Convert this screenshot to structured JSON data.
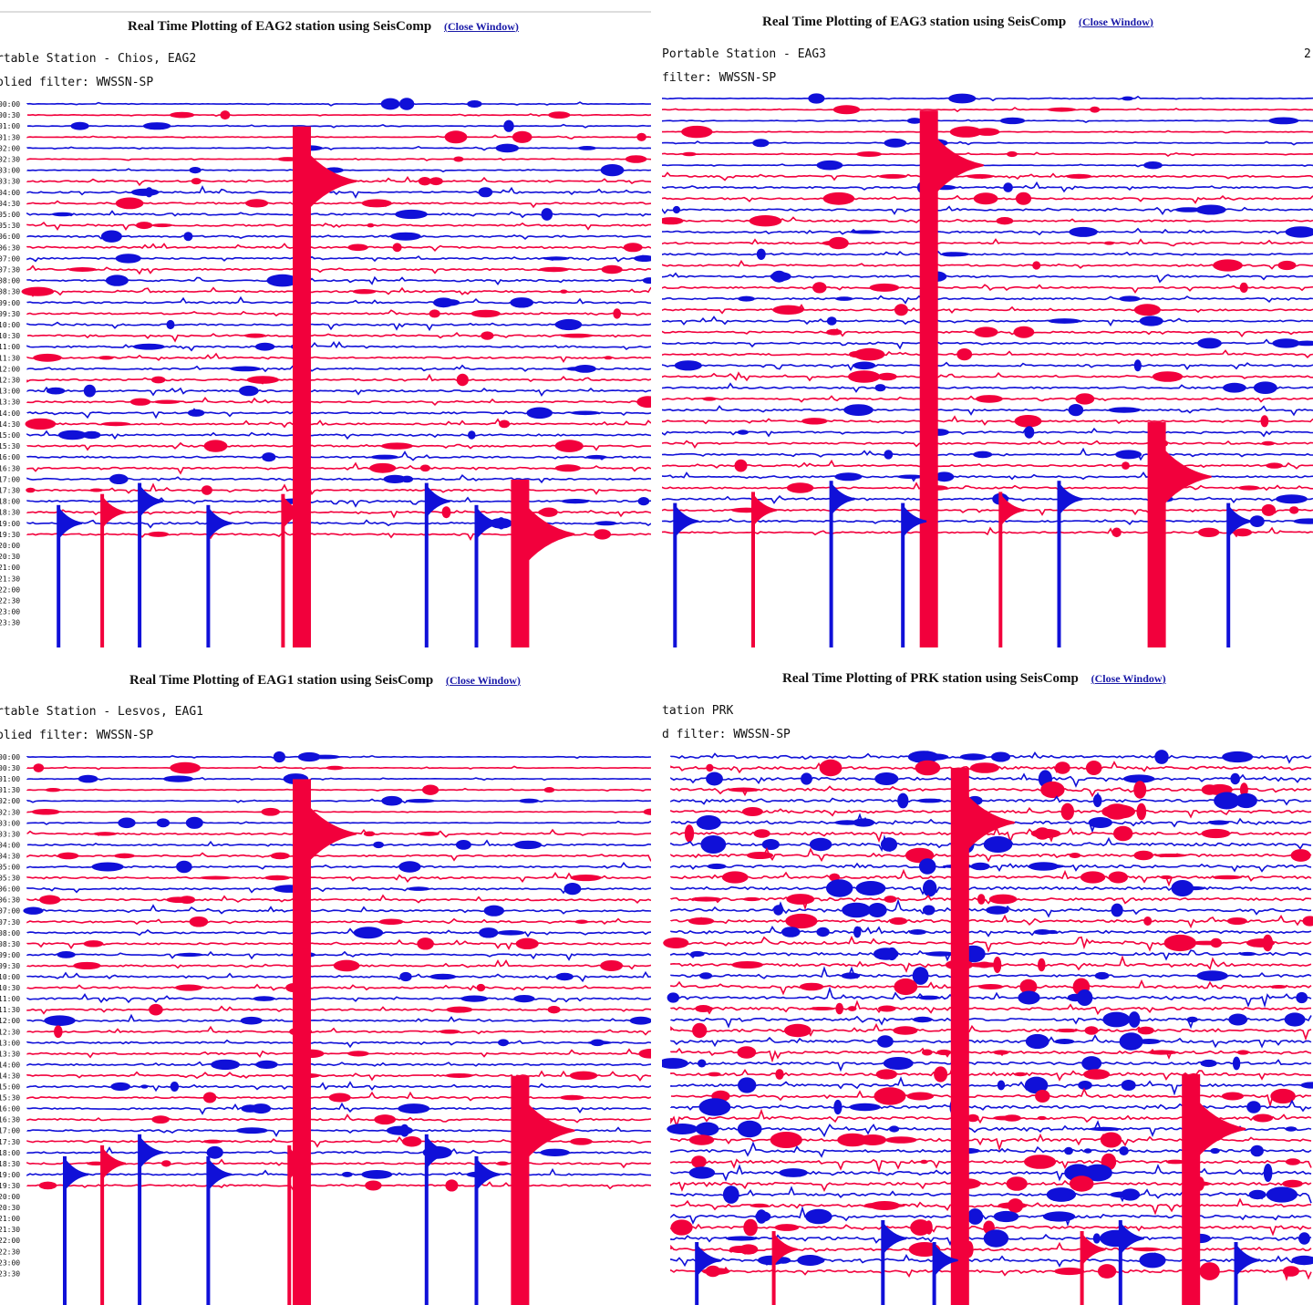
{
  "colors": {
    "red": "#f2003c",
    "blue": "#1010d8",
    "bg": "#ffffff"
  },
  "close_label": "Close Window",
  "panels": [
    {
      "id": "eag2",
      "title": "Real Time Plotting of EAG2 station using SeisComp",
      "station_line": "rtable Station - Chios, EAG2",
      "filter_line": "plied filter: WWSSN-SP",
      "side_text": "",
      "time_labels": [
        "00:00",
        "00:30",
        "01:00",
        "01:30",
        "02:00",
        "02:30",
        "03:00",
        "03:30",
        "04:00",
        "04:30",
        "05:00",
        "05:30",
        "06:00",
        "06:30",
        "07:00",
        "07:30",
        "08:00",
        "08:30",
        "09:00",
        "09:30",
        "10:00",
        "10:30",
        "11:00",
        "11:30",
        "12:00",
        "12:30",
        "13:00",
        "13:30",
        "14:00",
        "14:30",
        "15:00",
        "15:30",
        "16:00",
        "16:30",
        "17:00",
        "17:30",
        "18:00",
        "18:30",
        "19:00",
        "19:30",
        "20:00",
        "20:30",
        "21:00",
        "21:30",
        "22:00",
        "22:30",
        "23:00",
        "23:30"
      ]
    },
    {
      "id": "eag3",
      "title": "Real Time Plotting of EAG3 station using SeisComp",
      "station_line": "Portable Station - EAG3",
      "filter_line": "filter: WWSSN-SP",
      "side_text": "2",
      "time_labels": []
    },
    {
      "id": "eag1",
      "title": "Real Time Plotting of EAG1 station using SeisComp",
      "station_line": "rtable Station - Lesvos, EAG1",
      "filter_line": "plied filter: WWSSN-SP",
      "side_text": "",
      "time_labels": [
        "00:00",
        "00:30",
        "01:00",
        "01:30",
        "02:00",
        "02:30",
        "03:00",
        "03:30",
        "04:00",
        "04:30",
        "05:00",
        "05:30",
        "06:00",
        "06:30",
        "07:00",
        "07:30",
        "08:00",
        "08:30",
        "09:00",
        "09:30",
        "10:00",
        "10:30",
        "11:00",
        "11:30",
        "12:00",
        "12:30",
        "13:00",
        "13:30",
        "14:00",
        "14:30",
        "15:00",
        "15:30",
        "16:00",
        "16:30",
        "17:00",
        "17:30",
        "18:00",
        "18:30",
        "19:00",
        "19:30",
        "20:00",
        "20:30",
        "21:00",
        "21:30",
        "22:00",
        "22:30",
        "23:00",
        "23:30"
      ]
    },
    {
      "id": "prk",
      "title": "Real Time Plotting of PRK station using SeisComp",
      "station_line": "tation PRK",
      "filter_line": "d filter: WWSSN-SP",
      "side_text": "",
      "time_labels": []
    }
  ],
  "chart_data": [
    {
      "type": "heatmap",
      "station": "EAG2",
      "rows": 48,
      "interval_minutes": 30,
      "trace_colors": [
        "red",
        "blue"
      ],
      "major_events_fraction_of_row": [
        0.44,
        0.79
      ],
      "minor_events_fraction_of_row": [
        0.05,
        0.12,
        0.18,
        0.29,
        0.41,
        0.64,
        0.72
      ]
    },
    {
      "type": "heatmap",
      "station": "EAG3",
      "rows": 42,
      "interval_minutes": 30,
      "trace_colors": [
        "red",
        "blue"
      ],
      "major_events_fraction_of_row": [
        0.41,
        0.76
      ],
      "minor_events_fraction_of_row": [
        0.02,
        0.14,
        0.26,
        0.37,
        0.52,
        0.61,
        0.87
      ]
    },
    {
      "type": "heatmap",
      "station": "EAG1",
      "rows": 48,
      "interval_minutes": 30,
      "trace_colors": [
        "red",
        "blue"
      ],
      "major_events_fraction_of_row": [
        0.44,
        0.79
      ],
      "minor_events_fraction_of_row": [
        0.06,
        0.12,
        0.18,
        0.29,
        0.42,
        0.64,
        0.72
      ]
    },
    {
      "type": "heatmap",
      "station": "PRK",
      "rows": 48,
      "interval_minutes": 30,
      "trace_colors": [
        "red",
        "blue"
      ],
      "major_events_fraction_of_row": [
        0.45,
        0.81
      ],
      "minor_events_fraction_of_row": [
        0.04,
        0.16,
        0.33,
        0.41,
        0.64,
        0.7,
        0.88
      ]
    }
  ]
}
